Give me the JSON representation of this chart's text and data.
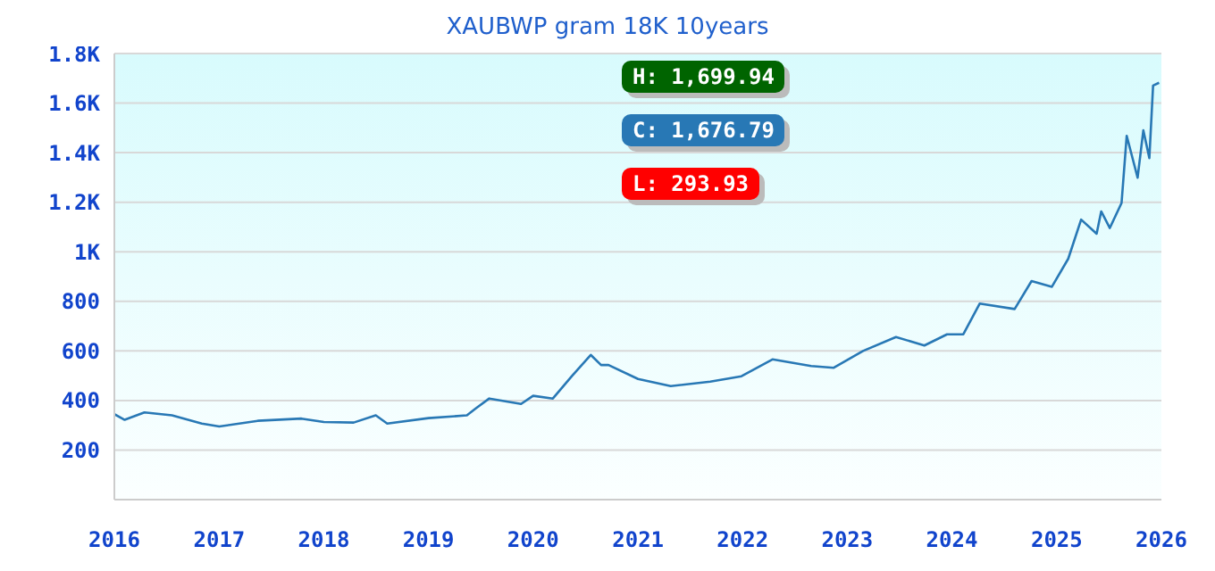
{
  "chart_data": {
    "type": "line",
    "title": "XAUBWP gram 18K 10years",
    "x": [
      "2016-01-01",
      "2016-02-06",
      "2016-04-15",
      "2016-07-20",
      "2016-11-01",
      "2017-01-01",
      "2017-05-15",
      "2017-10-15",
      "2018-01-01",
      "2018-04-15",
      "2018-07-01",
      "2018-08-10",
      "2019-01-01",
      "2019-05-15",
      "2019-06-15",
      "2019-08-01",
      "2019-11-20",
      "2020-01-01",
      "2020-03-10",
      "2020-05-15",
      "2020-07-20",
      "2020-08-25",
      "2020-09-20",
      "2021-01-01",
      "2021-04-25",
      "2021-09-10",
      "2021-12-28",
      "2022-04-15",
      "2022-08-28",
      "2022-11-15",
      "2023-02-25",
      "2023-06-20",
      "2023-09-27",
      "2023-12-15",
      "2024-02-10",
      "2024-04-07",
      "2024-08-07",
      "2024-10-05",
      "2024-12-15",
      "2025-02-10",
      "2025-03-27",
      "2025-05-20",
      "2025-06-05",
      "2025-07-05",
      "2025-08-15",
      "2025-09-02",
      "2025-10-10",
      "2025-10-30",
      "2025-11-20",
      "2025-12-03",
      "2025-12-24"
    ],
    "series": [
      {
        "color": "#2878b5",
        "values": [
          345,
          322,
          352,
          340,
          307,
          295,
          318,
          327,
          313,
          311,
          340,
          307,
          329,
          340,
          368,
          408,
          386,
          419,
          408,
          498,
          584,
          543,
          543,
          487,
          458,
          476,
          498,
          566,
          539,
          532,
          600,
          656,
          622,
          667,
          667,
          791,
          769,
          882,
          859,
          972,
          1130,
          1073,
          1163,
          1096,
          1197,
          1468,
          1299,
          1490,
          1378,
          1671,
          1682
        ]
      }
    ],
    "xlim": [
      "2016-01-01",
      "2026-01-01"
    ],
    "xticks": [
      "2016",
      "2017",
      "2018",
      "2019",
      "2020",
      "2021",
      "2022",
      "2023",
      "2024",
      "2025",
      "2026"
    ],
    "ylim": [
      0,
      1800
    ],
    "yticks": [
      200,
      400,
      600,
      800,
      {
        "value": 1000,
        "label": "1K"
      },
      {
        "value": 1200,
        "label": "1.2K"
      },
      {
        "value": 1400,
        "label": "1.4K"
      },
      {
        "value": 1600,
        "label": "1.6K"
      },
      {
        "value": 1800,
        "label": "1.8K"
      }
    ],
    "grid": "y",
    "annotations": [
      "H: 1,699.94",
      "C: 1,676.79",
      "L: 293.93"
    ]
  }
}
